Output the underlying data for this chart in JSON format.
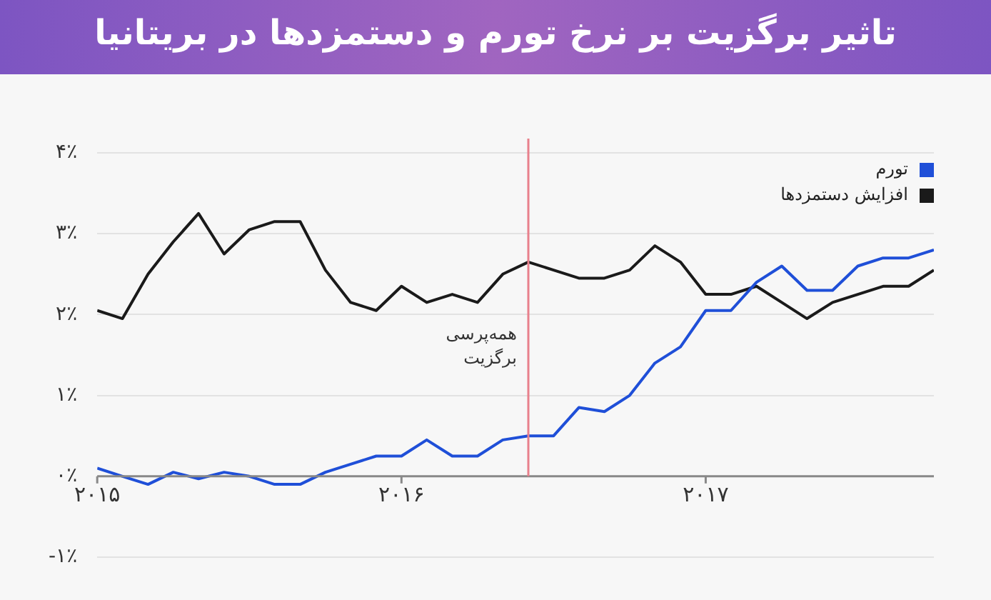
{
  "chart_data": {
    "type": "line",
    "title": "تاثیر برگزیت بر نرخ تورم و دستمزدها در بریتانیا",
    "x": [
      2015,
      2015.083,
      2015.167,
      2015.25,
      2015.333,
      2015.417,
      2015.5,
      2015.583,
      2015.667,
      2015.75,
      2015.833,
      2015.917,
      2016,
      2016.083,
      2016.167,
      2016.25,
      2016.333,
      2016.417,
      2016.5,
      2016.583,
      2016.667,
      2016.75,
      2016.833,
      2016.917,
      2017,
      2017.083,
      2017.167,
      2017.25,
      2017.333,
      2017.417,
      2017.5,
      2017.583,
      2017.667,
      2017.75
    ],
    "series": [
      {
        "name": "تورم",
        "color": "#1f4fd8",
        "values": [
          0.1,
          0.0,
          -0.1,
          0.05,
          -0.03,
          0.05,
          0.0,
          -0.1,
          -0.1,
          0.05,
          0.15,
          0.25,
          0.25,
          0.45,
          0.25,
          0.25,
          0.45,
          0.5,
          0.5,
          0.85,
          0.8,
          1.0,
          1.4,
          1.6,
          2.05,
          2.05,
          2.4,
          2.6,
          2.3,
          2.3,
          2.6,
          2.7,
          2.7,
          2.8
        ]
      },
      {
        "name": "افزایش دستمزدها",
        "color": "#1a1a1a",
        "values": [
          2.05,
          1.95,
          2.5,
          2.9,
          3.25,
          2.75,
          3.05,
          3.15,
          3.15,
          2.55,
          2.15,
          2.05,
          2.35,
          2.15,
          2.25,
          2.15,
          2.5,
          2.65,
          2.55,
          2.45,
          2.45,
          2.55,
          2.85,
          2.65,
          2.25,
          2.25,
          2.35,
          2.15,
          1.95,
          2.15,
          2.25,
          2.35,
          2.35,
          2.55
        ]
      }
    ],
    "xlim": [
      2015,
      2017.75
    ],
    "xticks": [
      {
        "value": 2015,
        "label": "۲۰۱۵"
      },
      {
        "value": 2016,
        "label": "۲۰۱۶"
      },
      {
        "value": 2017,
        "label": "۲۰۱۷"
      }
    ],
    "ylim": [
      -1,
      4
    ],
    "yticks": [
      {
        "value": -1,
        "label": "-۱٪"
      },
      {
        "value": 0,
        "label": "۰٪"
      },
      {
        "value": 1,
        "label": "۱٪"
      },
      {
        "value": 2,
        "label": "۲٪"
      },
      {
        "value": 3,
        "label": "۳٪"
      },
      {
        "value": 4,
        "label": "۴٪"
      }
    ],
    "grid": "y",
    "legend": "top right",
    "marker": "none",
    "line_style": "solid",
    "ref_lines": [
      {
        "axis": "x",
        "value": 2016.417,
        "color": "#e8808c"
      }
    ],
    "annotations": [
      {
        "text": "همه‌پرسی برگزیت",
        "x": 2016.417,
        "y": 1.6
      }
    ]
  }
}
